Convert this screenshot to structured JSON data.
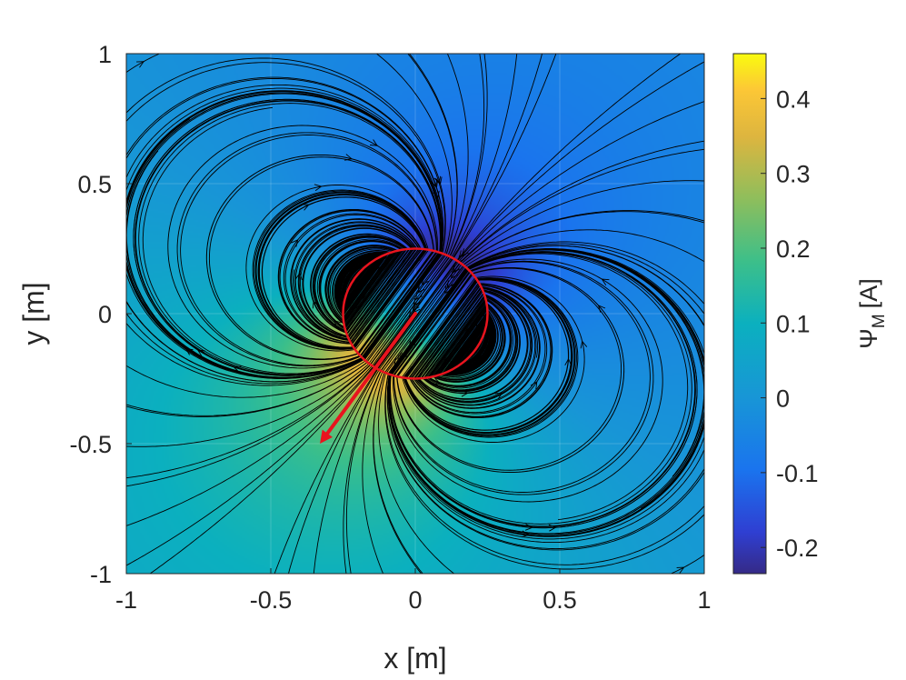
{
  "chart_data": {
    "type": "heatmap",
    "title": "",
    "xlabel": "x [m]",
    "ylabel": "y [m]",
    "xlim": [
      -1,
      1
    ],
    "ylim": [
      -1,
      1
    ],
    "x_ticks": [
      "-1",
      "-0.5",
      "0",
      "0.5",
      "1"
    ],
    "x_tick_values": [
      -1,
      -0.5,
      0,
      0.5,
      1
    ],
    "y_ticks": [
      "-1",
      "-0.5",
      "0",
      "0.5",
      "1"
    ],
    "y_tick_values": [
      -1,
      -0.5,
      0,
      0.5,
      1
    ],
    "grid": true,
    "colorbar": {
      "label_main": "Ψ",
      "label_sub": "M",
      "label_unit": "[A]",
      "range": [
        -0.235,
        0.46
      ],
      "ticks": [
        "-0.2",
        "-0.1",
        "0",
        "0.1",
        "0.2",
        "0.3",
        "0.4"
      ],
      "tick_values": [
        -0.2,
        -0.1,
        0,
        0.1,
        0.2,
        0.3,
        0.4
      ],
      "colormap": "parula"
    },
    "field": {
      "description_type": "dipole-like scalar potential with streamlines",
      "dipole_direction": [
        -0.33,
        -0.5
      ],
      "peak_value": 0.46,
      "min_value": -0.235,
      "background_value": 0.0
    },
    "circle": {
      "center": [
        0,
        0
      ],
      "radius": 0.25,
      "color": "#e8141e"
    },
    "arrow": {
      "from": [
        0,
        0
      ],
      "to": [
        -0.33,
        -0.5
      ],
      "color": "#e8141e"
    },
    "streamline_color": "#000000"
  }
}
